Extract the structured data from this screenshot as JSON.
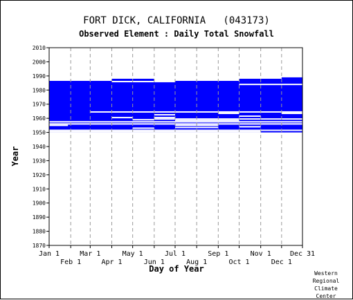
{
  "chart_data": {
    "type": "heatmap",
    "title": "FORT DICK, CALIFORNIA   (043173)",
    "subtitle": "Observed Element : Daily Total Snowfall",
    "xlabel": "Day of Year",
    "ylabel": "Year",
    "ylim": [
      1870,
      2010
    ],
    "xlim": [
      1,
      365
    ],
    "y_ticks": [
      2010,
      2000,
      1990,
      1980,
      1970,
      1960,
      1950,
      1940,
      1930,
      1920,
      1910,
      1900,
      1890,
      1880,
      1870
    ],
    "x_ticks_upper": [
      {
        "label": "Jan 1",
        "day": 1
      },
      {
        "label": "Mar 1",
        "day": 60
      },
      {
        "label": "May 1",
        "day": 121
      },
      {
        "label": "Jul 1",
        "day": 182
      },
      {
        "label": "Sep 1",
        "day": 244
      },
      {
        "label": "Nov 1",
        "day": 305
      },
      {
        "label": "Dec 31",
        "day": 365
      }
    ],
    "x_ticks_lower": [
      {
        "label": "Feb 1",
        "day": 32
      },
      {
        "label": "Apr 1",
        "day": 91
      },
      {
        "label": "Jun 1",
        "day": 152
      },
      {
        "label": "Aug 1",
        "day": 213
      },
      {
        "label": "Oct 1",
        "day": 274
      },
      {
        "label": "Dec 1",
        "day": 335
      }
    ],
    "grid": true,
    "data_color": "#0000ff",
    "observed_blocks": [
      {
        "day_start": 1,
        "day_end": 365,
        "year_start": 1950,
        "year_end": 1986.5
      },
      {
        "day_start": 91,
        "day_end": 152,
        "year_start": 1986.5,
        "year_end": 1988
      },
      {
        "day_start": 274,
        "day_end": 335,
        "year_start": 1986.5,
        "year_end": 1988
      },
      {
        "day_start": 335,
        "day_end": 365,
        "year_start": 1986.5,
        "year_end": 1989
      }
    ],
    "missing_gaps": [
      {
        "day_start": 1,
        "day_end": 365,
        "year": 1957.5
      },
      {
        "day_start": 1,
        "day_end": 365,
        "year": 1956
      },
      {
        "day_start": 1,
        "day_end": 28,
        "year": 1955
      },
      {
        "day_start": 60,
        "day_end": 365,
        "year": 1964.5
      },
      {
        "day_start": 91,
        "day_end": 121,
        "year": 1960.5
      },
      {
        "day_start": 121,
        "day_end": 152,
        "year": 1959
      },
      {
        "day_start": 152,
        "day_end": 182,
        "year": 1962.5
      },
      {
        "day_start": 152,
        "day_end": 182,
        "year": 1960.5
      },
      {
        "day_start": 152,
        "day_end": 365,
        "year": 1959.5
      },
      {
        "day_start": 182,
        "day_end": 274,
        "year": 1958.5
      },
      {
        "day_start": 91,
        "day_end": 182,
        "year": 1986
      },
      {
        "day_start": 244,
        "day_end": 274,
        "year": 1963.5
      },
      {
        "day_start": 274,
        "day_end": 305,
        "year": 1961.5
      },
      {
        "day_start": 274,
        "day_end": 305,
        "year": 1954
      },
      {
        "day_start": 121,
        "day_end": 152,
        "year": 1953
      },
      {
        "day_start": 335,
        "day_end": 365,
        "year": 1963.5
      },
      {
        "day_start": 182,
        "day_end": 244,
        "year": 1955
      },
      {
        "day_start": 182,
        "day_end": 244,
        "year": 1953.5
      },
      {
        "day_start": 1,
        "day_end": 365,
        "year": 1951.5
      },
      {
        "day_start": 1,
        "day_end": 305,
        "year": 1950.5
      },
      {
        "day_start": 274,
        "day_end": 365,
        "year": 1984
      }
    ]
  },
  "credit_lines": [
    "Western",
    "Regional",
    "Climate",
    "Center"
  ]
}
